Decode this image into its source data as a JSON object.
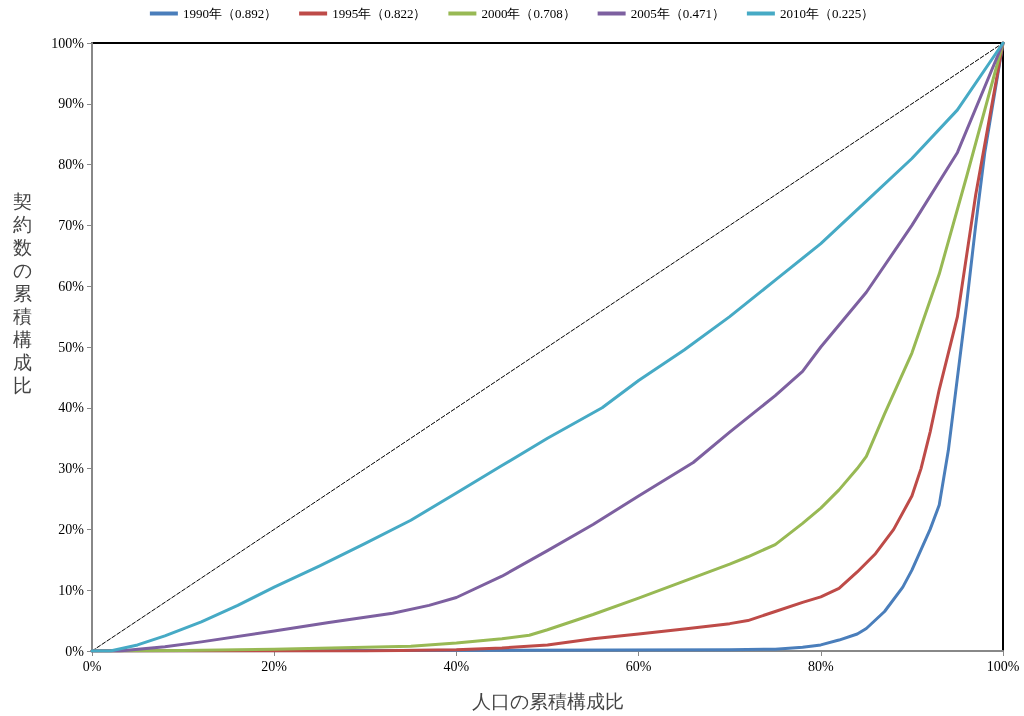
{
  "chart_data": {
    "type": "line",
    "xlabel": "人口の累積構成比",
    "ylabel": "契約数の累積構成比",
    "xlim": [
      0,
      100
    ],
    "ylim": [
      0,
      100
    ],
    "xticks": [
      {
        "value": 0,
        "label": "0%"
      },
      {
        "value": 20,
        "label": "20%"
      },
      {
        "value": 40,
        "label": "40%"
      },
      {
        "value": 60,
        "label": "60%"
      },
      {
        "value": 80,
        "label": "80%"
      },
      {
        "value": 100,
        "label": "100%"
      }
    ],
    "yticks": [
      {
        "value": 0,
        "label": "0%"
      },
      {
        "value": 10,
        "label": "10%"
      },
      {
        "value": 20,
        "label": "20%"
      },
      {
        "value": 30,
        "label": "30%"
      },
      {
        "value": 40,
        "label": "40%"
      },
      {
        "value": 50,
        "label": "50%"
      },
      {
        "value": 60,
        "label": "60%"
      },
      {
        "value": 70,
        "label": "70%"
      },
      {
        "value": 80,
        "label": "80%"
      },
      {
        "value": 90,
        "label": "90%"
      },
      {
        "value": 100,
        "label": "100%"
      }
    ],
    "grid": false,
    "legend": "top",
    "marker": "none",
    "series": [
      {
        "name": "1990年（0.892）",
        "color": "#4a7ebb",
        "line_style": "solid",
        "x": [
          0,
          70,
          75,
          78,
          80,
          82,
          84,
          85,
          87,
          89,
          90,
          92,
          93,
          94,
          95,
          96,
          97,
          98,
          100
        ],
        "values": [
          0,
          0.2,
          0.3,
          0.6,
          1,
          1.8,
          2.8,
          3.7,
          6.5,
          10.5,
          13.3,
          20,
          24,
          33,
          45,
          57,
          70,
          82,
          100
        ]
      },
      {
        "name": "1995年（0.822）",
        "color": "#be4b48",
        "line_style": "solid",
        "x": [
          0,
          30,
          40,
          45,
          50,
          55,
          60,
          65,
          70,
          72,
          75,
          78,
          80,
          82,
          84,
          86,
          88,
          90,
          91,
          92,
          93,
          95,
          97,
          100
        ],
        "values": [
          0,
          0,
          0.2,
          0.5,
          1,
          2,
          2.8,
          3.6,
          4.5,
          5,
          6.5,
          8,
          8.9,
          10.3,
          13,
          16,
          20,
          25.5,
          30,
          36,
          43,
          55,
          75,
          100
        ]
      },
      {
        "name": "2000年（0.708）",
        "color": "#98b954",
        "line_style": "solid",
        "x": [
          0,
          10,
          20,
          30,
          35,
          40,
          45,
          48,
          50,
          55,
          60,
          65,
          70,
          72,
          75,
          78,
          80,
          82,
          84,
          85,
          87,
          90,
          93,
          96,
          100
        ],
        "values": [
          0,
          0.1,
          0.3,
          0.6,
          0.8,
          1.3,
          2,
          2.6,
          3.5,
          6,
          8.7,
          11.5,
          14.3,
          15.5,
          17.5,
          21,
          23.5,
          26.5,
          30,
          32,
          39,
          49,
          62,
          78,
          100
        ]
      },
      {
        "name": "2005年（0.471）",
        "color": "#7d60a0",
        "line_style": "solid",
        "x": [
          0,
          3,
          8,
          12,
          20,
          26,
          33,
          37,
          40,
          45,
          50,
          55,
          60,
          66,
          70,
          75,
          78,
          80,
          85,
          90,
          95,
          100
        ],
        "values": [
          0,
          0,
          0.7,
          1.5,
          3.3,
          4.7,
          6.2,
          7.5,
          8.8,
          12.3,
          16.5,
          20.8,
          25.5,
          31,
          36,
          42,
          46,
          50,
          59,
          70,
          82,
          100
        ]
      },
      {
        "name": "2010年（0.225）",
        "color": "#46aac5",
        "line_style": "solid",
        "x": [
          0,
          2,
          5,
          8,
          12,
          16,
          20,
          25,
          30,
          35,
          40,
          45,
          50,
          56,
          60,
          65,
          70,
          75,
          80,
          85,
          90,
          95,
          100
        ],
        "values": [
          0,
          0,
          1,
          2.5,
          4.8,
          7.5,
          10.5,
          14,
          17.7,
          21.5,
          26,
          30.5,
          35,
          40,
          44.5,
          49.5,
          55,
          61,
          67,
          74,
          81,
          89,
          100
        ]
      },
      {
        "color": "#000000",
        "line_style": "dashed",
        "x": [
          0,
          100
        ],
        "values": [
          0,
          100
        ]
      }
    ]
  }
}
